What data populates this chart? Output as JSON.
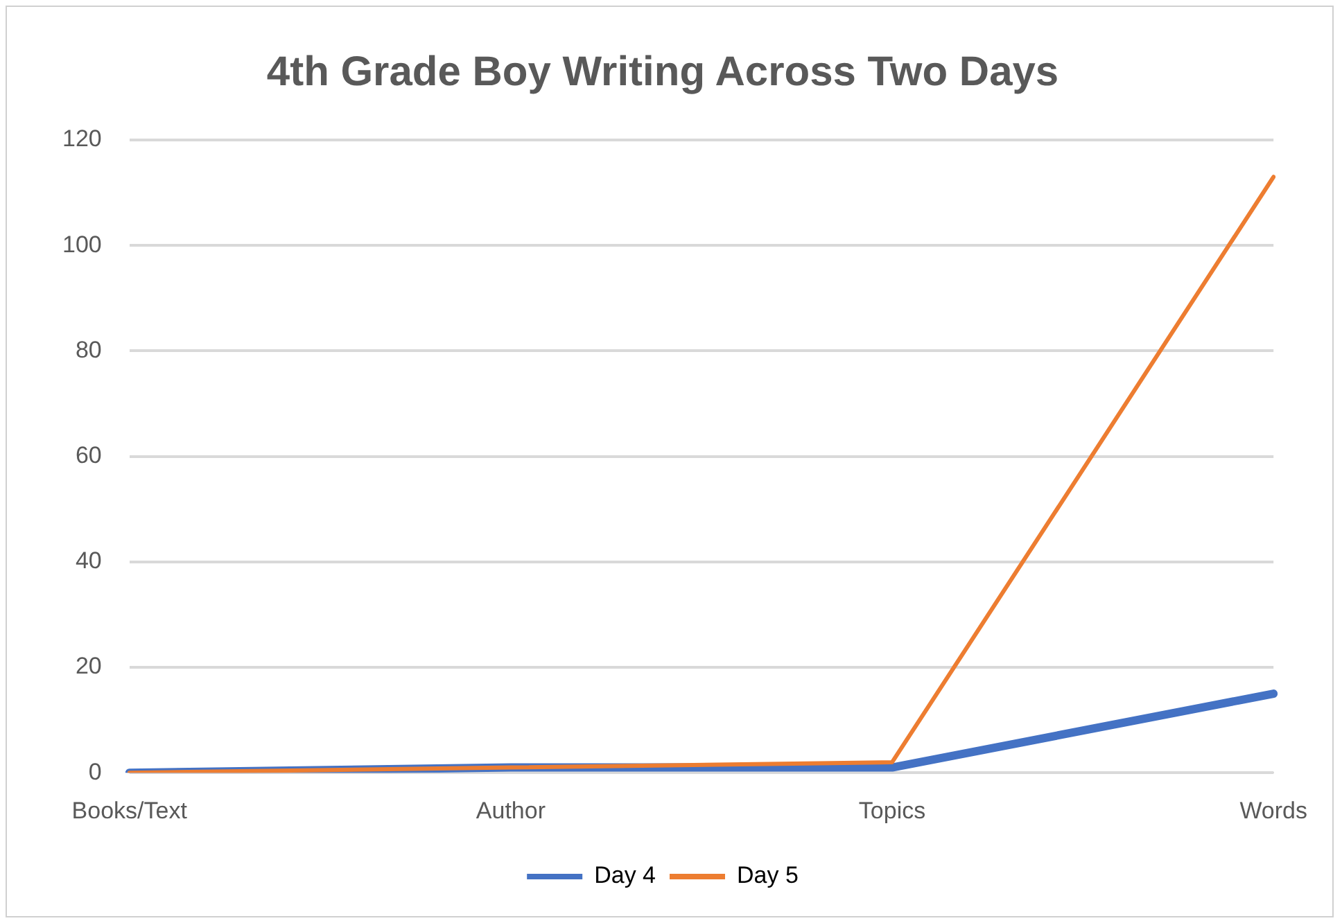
{
  "chart_data": {
    "type": "line",
    "title": "4th Grade Boy Writing Across Two Days",
    "categories": [
      "Books/Text",
      "Author",
      "Topics",
      "Words"
    ],
    "series": [
      {
        "name": "Day 4",
        "color": "#4472c4",
        "values": [
          0,
          1,
          1,
          15
        ]
      },
      {
        "name": "Day 5",
        "color": "#ed7d31",
        "values": [
          0,
          1,
          2,
          113
        ]
      }
    ],
    "ylim": [
      0,
      120
    ],
    "yticks": [
      0,
      20,
      40,
      60,
      80,
      100,
      120
    ],
    "grid": "y",
    "legend": "bottom",
    "marker": "none"
  }
}
